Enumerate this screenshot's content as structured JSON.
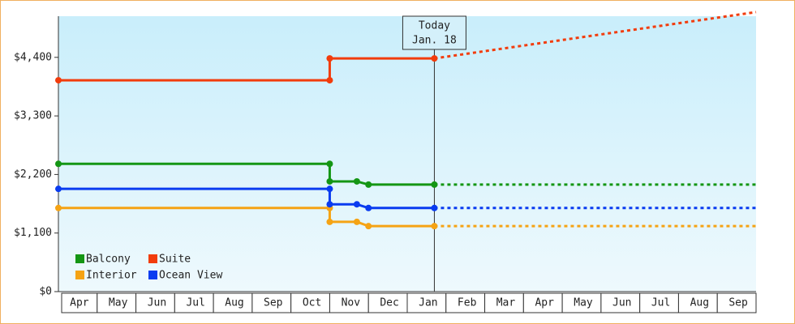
{
  "chart_data": {
    "type": "line",
    "categories": [
      "Apr",
      "May",
      "Jun",
      "Jul",
      "Aug",
      "Sep",
      "Oct",
      "Nov",
      "Dec",
      "Jan",
      "Feb",
      "Mar",
      "Apr",
      "May",
      "Jun",
      "Jul",
      "Aug",
      "Sep"
    ],
    "xlim": [
      0,
      18
    ],
    "ylim": [
      0,
      5250
    ],
    "yticks": [
      {
        "value": 0,
        "label": "$0"
      },
      {
        "value": 1100,
        "label": "$1,100"
      },
      {
        "value": 2200,
        "label": "$2,200"
      },
      {
        "value": 3300,
        "label": "$3,300"
      },
      {
        "value": 4400,
        "label": "$4,400"
      }
    ],
    "today_x": 9.7,
    "annotation": [
      "Today",
      "Jan. 18"
    ],
    "legend": "lower left",
    "series": [
      {
        "name": "Balcony",
        "color": "#149614",
        "x": [
          0,
          7,
          7,
          7.7,
          8,
          9.7,
          18
        ],
        "values": [
          2400,
          2400,
          2070,
          2070,
          2010,
          2010,
          2010
        ]
      },
      {
        "name": "Suite",
        "color": "#f23c0c",
        "x": [
          0,
          7,
          7,
          9.7,
          18
        ],
        "values": [
          3970,
          3970,
          4380,
          4380,
          5250
        ]
      },
      {
        "name": "Interior",
        "color": "#f5a314",
        "x": [
          0,
          7,
          7,
          7.7,
          8,
          9.7,
          18
        ],
        "values": [
          1570,
          1570,
          1310,
          1310,
          1230,
          1230,
          1230
        ]
      },
      {
        "name": "Ocean View",
        "color": "#0a3cf0",
        "x": [
          0,
          7,
          7,
          7.7,
          8,
          9.7,
          18
        ],
        "values": [
          1930,
          1930,
          1640,
          1640,
          1570,
          1570,
          1570
        ]
      }
    ]
  }
}
